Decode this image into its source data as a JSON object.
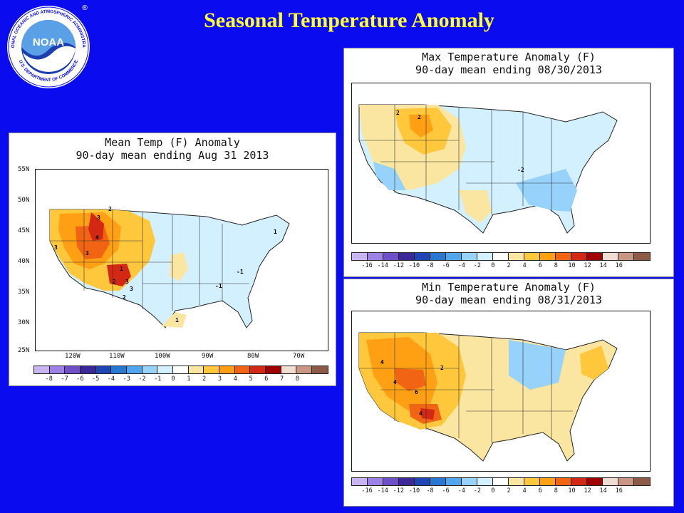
{
  "slide": {
    "title": "Seasonal Temperature Anomaly"
  },
  "logo": {
    "text": "NOAA",
    "ring_text_top": "NATIONAL OCEANIC AND ATMOSPHERIC ADMINISTRATION",
    "ring_text_bottom": "U.S. DEPARTMENT OF COMMERCE",
    "mark": "®"
  },
  "maps": {
    "mean": {
      "title_line1": "Mean Temp (F) Anomaly",
      "title_line2": "90-day mean ending Aug 31 2013",
      "lat_labels": [
        "55N",
        "50N",
        "45N",
        "40N",
        "35N",
        "30N",
        "25N"
      ],
      "lon_labels": [
        "120W",
        "110W",
        "100W",
        "90W",
        "80W",
        "70W"
      ],
      "colorbar_ticks": [
        "-8",
        "-7",
        "-6",
        "-5",
        "-4",
        "-3",
        "-2",
        "-1",
        "0",
        "1",
        "2",
        "3",
        "4",
        "5",
        "6",
        "7",
        "8"
      ],
      "contour_labels": [
        "3",
        "3",
        "2",
        "4",
        "3",
        "1",
        "2",
        "3",
        "2",
        "3",
        "-1",
        "-1",
        "1",
        "1"
      ]
    },
    "max": {
      "title_line1": "Max Temperature Anomaly (F)",
      "title_line2": "90-day mean ending 08/30/2013",
      "colorbar_ticks": [
        "-16",
        "-14",
        "-12",
        "-10",
        "-8",
        "-6",
        "-4",
        "-2",
        "0",
        "2",
        "4",
        "6",
        "8",
        "10",
        "12",
        "14",
        "16"
      ],
      "contour_labels": [
        "2",
        "-2",
        "2"
      ]
    },
    "min": {
      "title_line1": "Min Temperature Anomaly (F)",
      "title_line2": "90-day mean ending 08/31/2013",
      "colorbar_ticks": [
        "-16",
        "-14",
        "-12",
        "-10",
        "-8",
        "-6",
        "-4",
        "-2",
        "0",
        "2",
        "4",
        "6",
        "8",
        "10",
        "12",
        "14",
        "16"
      ],
      "contour_labels": [
        "4",
        "2",
        "4",
        "6",
        "4"
      ]
    }
  },
  "colors": {
    "scale": [
      "#c8b4f0",
      "#9c82e4",
      "#6e50c8",
      "#3c2896",
      "#1e46b4",
      "#2878d2",
      "#50a5ec",
      "#96d2fa",
      "#d2f0ff",
      "#ffffff",
      "#fae6a0",
      "#ffc83c",
      "#ffa014",
      "#f06414",
      "#d22814",
      "#a00000",
      "#f0dcd2",
      "#c89682",
      "#8c5a46"
    ]
  }
}
